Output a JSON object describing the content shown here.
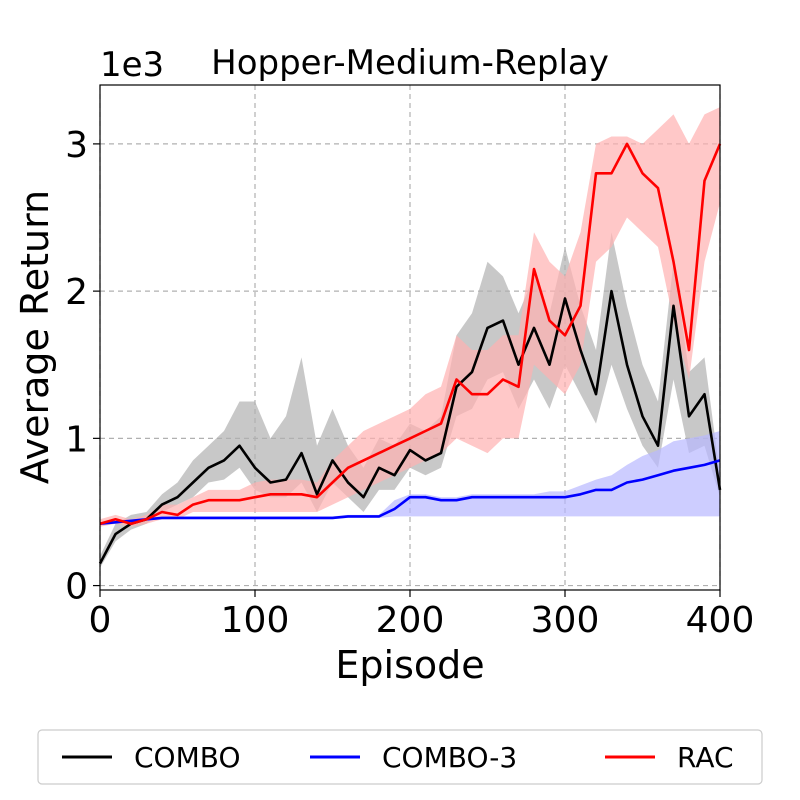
{
  "chart_data": {
    "type": "line",
    "title": "Hopper-Medium-Replay",
    "offset_text": "1e3",
    "xlabel": "Episode",
    "ylabel": "Average Return",
    "xlim": [
      0,
      400
    ],
    "ylim": [
      -0.03,
      3.4
    ],
    "xticks": [
      0,
      100,
      200,
      300,
      400
    ],
    "xtick_labels": [
      "0",
      "100",
      "200",
      "300",
      "400"
    ],
    "yticks": [
      0,
      1,
      2,
      3
    ],
    "ytick_labels": [
      "0",
      "1",
      "2",
      "3"
    ],
    "grid": true,
    "legend_position": "bottom",
    "x": [
      0,
      10,
      20,
      30,
      40,
      50,
      60,
      70,
      80,
      90,
      100,
      110,
      120,
      130,
      140,
      150,
      160,
      170,
      180,
      190,
      200,
      210,
      220,
      230,
      240,
      250,
      260,
      270,
      280,
      290,
      300,
      310,
      320,
      330,
      340,
      350,
      360,
      370,
      380,
      390,
      400
    ],
    "series": [
      {
        "name": "COMBO",
        "color": "#000000",
        "band_color": "#b0b0b0",
        "values": [
          0.15,
          0.35,
          0.42,
          0.45,
          0.55,
          0.6,
          0.7,
          0.8,
          0.85,
          0.95,
          0.8,
          0.7,
          0.72,
          0.9,
          0.62,
          0.85,
          0.7,
          0.6,
          0.8,
          0.75,
          0.92,
          0.85,
          0.9,
          1.35,
          1.45,
          1.75,
          1.8,
          1.5,
          1.75,
          1.5,
          1.95,
          1.6,
          1.3,
          2.0,
          1.5,
          1.15,
          0.95,
          1.9,
          1.15,
          1.3,
          0.65
        ],
        "lower": [
          0.12,
          0.3,
          0.38,
          0.42,
          0.5,
          0.55,
          0.6,
          0.7,
          0.72,
          0.8,
          0.65,
          0.6,
          0.6,
          0.7,
          0.5,
          0.7,
          0.6,
          0.5,
          0.65,
          0.65,
          0.8,
          0.75,
          0.8,
          1.15,
          1.2,
          1.4,
          1.45,
          1.2,
          1.4,
          1.2,
          1.5,
          1.3,
          1.1,
          1.5,
          1.2,
          0.95,
          0.8,
          1.4,
          0.9,
          0.95,
          0.6
        ],
        "upper": [
          0.2,
          0.42,
          0.48,
          0.5,
          0.62,
          0.7,
          0.85,
          0.95,
          1.05,
          1.25,
          1.25,
          1.0,
          1.15,
          1.55,
          0.95,
          1.2,
          0.95,
          0.8,
          1.0,
          0.95,
          1.1,
          1.05,
          1.15,
          1.7,
          1.85,
          2.2,
          2.1,
          1.85,
          2.1,
          1.85,
          2.3,
          1.9,
          1.6,
          2.4,
          1.9,
          1.5,
          1.25,
          2.2,
          1.45,
          1.55,
          0.75
        ]
      },
      {
        "name": "COMBO-3",
        "color": "#0000ff",
        "band_color": "#b8b8ff",
        "values": [
          0.42,
          0.43,
          0.44,
          0.45,
          0.46,
          0.46,
          0.46,
          0.46,
          0.46,
          0.46,
          0.46,
          0.46,
          0.46,
          0.46,
          0.46,
          0.46,
          0.47,
          0.47,
          0.47,
          0.52,
          0.6,
          0.6,
          0.58,
          0.58,
          0.6,
          0.6,
          0.6,
          0.6,
          0.6,
          0.6,
          0.6,
          0.62,
          0.65,
          0.65,
          0.7,
          0.72,
          0.75,
          0.78,
          0.8,
          0.82,
          0.85
        ],
        "lower": [
          0.41,
          0.42,
          0.43,
          0.44,
          0.45,
          0.45,
          0.45,
          0.45,
          0.45,
          0.45,
          0.45,
          0.45,
          0.45,
          0.45,
          0.45,
          0.45,
          0.46,
          0.46,
          0.46,
          0.47,
          0.47,
          0.47,
          0.47,
          0.47,
          0.47,
          0.47,
          0.47,
          0.47,
          0.47,
          0.47,
          0.47,
          0.47,
          0.47,
          0.47,
          0.47,
          0.47,
          0.47,
          0.47,
          0.47,
          0.47,
          0.47
        ],
        "upper": [
          0.43,
          0.44,
          0.45,
          0.46,
          0.47,
          0.47,
          0.47,
          0.47,
          0.47,
          0.47,
          0.47,
          0.47,
          0.47,
          0.47,
          0.47,
          0.47,
          0.48,
          0.48,
          0.48,
          0.58,
          0.62,
          0.62,
          0.6,
          0.6,
          0.62,
          0.62,
          0.62,
          0.62,
          0.62,
          0.64,
          0.64,
          0.68,
          0.72,
          0.75,
          0.82,
          0.88,
          0.92,
          0.98,
          1.0,
          1.02,
          1.05
        ]
      },
      {
        "name": "RAC",
        "color": "#ff0000",
        "band_color": "#ffb0b0",
        "values": [
          0.42,
          0.45,
          0.42,
          0.45,
          0.5,
          0.48,
          0.55,
          0.58,
          0.58,
          0.58,
          0.6,
          0.62,
          0.62,
          0.62,
          0.6,
          0.7,
          0.8,
          0.85,
          0.9,
          0.95,
          1.0,
          1.05,
          1.1,
          1.4,
          1.3,
          1.3,
          1.4,
          1.35,
          2.15,
          1.8,
          1.7,
          1.9,
          2.8,
          2.8,
          3.0,
          2.8,
          2.7,
          2.2,
          1.6,
          2.75,
          3.0
        ],
        "lower": [
          0.4,
          0.42,
          0.4,
          0.42,
          0.45,
          0.45,
          0.5,
          0.5,
          0.5,
          0.5,
          0.5,
          0.5,
          0.5,
          0.5,
          0.5,
          0.55,
          0.6,
          0.65,
          0.7,
          0.75,
          0.8,
          0.85,
          0.9,
          1.0,
          0.95,
          0.9,
          1.0,
          1.0,
          1.5,
          1.4,
          1.3,
          1.5,
          2.2,
          2.3,
          2.5,
          2.4,
          2.3,
          1.8,
          1.4,
          2.2,
          2.6
        ],
        "upper": [
          0.45,
          0.48,
          0.45,
          0.48,
          0.55,
          0.55,
          0.6,
          0.65,
          0.65,
          0.65,
          0.7,
          0.72,
          0.72,
          0.72,
          0.7,
          0.85,
          0.95,
          1.05,
          1.1,
          1.15,
          1.2,
          1.3,
          1.35,
          1.7,
          1.6,
          1.6,
          1.7,
          1.7,
          2.4,
          2.2,
          2.1,
          2.4,
          3.0,
          3.05,
          3.05,
          3.0,
          3.1,
          3.2,
          3.0,
          3.2,
          3.25
        ]
      }
    ]
  }
}
